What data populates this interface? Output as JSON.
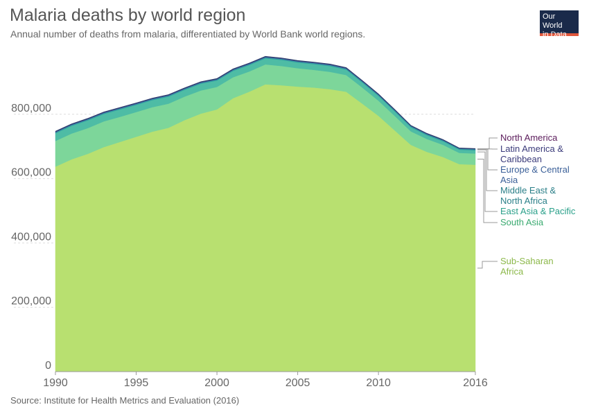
{
  "title": "Malaria deaths by world region",
  "subtitle": "Annual number of deaths from malaria, differentiated by World Bank world regions.",
  "source": "Source: Institute for Health Metrics and Evaluation (2016)",
  "logo": {
    "line1": "Our World",
    "line2": "in Data"
  },
  "chart_data": {
    "type": "area",
    "stacked": true,
    "title": "Malaria deaths by world region",
    "xlim": [
      1990,
      2016
    ],
    "ylim": [
      0,
      1000000
    ],
    "yticks": [
      0,
      200000,
      400000,
      600000,
      800000
    ],
    "ytick_labels": [
      "0",
      "200,000",
      "400,000",
      "600,000",
      "800,000"
    ],
    "xticks": [
      1990,
      1995,
      2000,
      2005,
      2010,
      2016
    ],
    "xtick_labels": [
      "1990",
      "1995",
      "2000",
      "2005",
      "2010",
      "2016"
    ],
    "grid": true,
    "legend_position": "right",
    "x": [
      1990,
      1991,
      1992,
      1993,
      1994,
      1995,
      1996,
      1997,
      1998,
      1999,
      2000,
      2001,
      2002,
      2003,
      2004,
      2005,
      2006,
      2007,
      2008,
      2009,
      2010,
      2011,
      2012,
      2013,
      2014,
      2015,
      2016
    ],
    "series": [
      {
        "name": "Sub-Saharan Africa",
        "color": "#b8e070",
        "values": [
          637000,
          660000,
          677000,
          698000,
          714000,
          730000,
          746000,
          758000,
          782000,
          802000,
          815000,
          850000,
          870000,
          893000,
          890000,
          886000,
          883000,
          878000,
          870000,
          833000,
          795000,
          750000,
          705000,
          683000,
          667000,
          645000,
          643000
        ]
      },
      {
        "name": "South Asia",
        "color": "#7dd69a",
        "values": [
          80000,
          80000,
          80000,
          80000,
          78000,
          77000,
          76000,
          75000,
          73000,
          72000,
          70000,
          65000,
          63000,
          62000,
          60000,
          57000,
          55000,
          54000,
          52000,
          50000,
          47000,
          45000,
          42000,
          40000,
          38000,
          35000,
          35000
        ]
      },
      {
        "name": "East Asia & Pacific",
        "color": "#4ebca5",
        "values": [
          24000,
          24000,
          24000,
          23000,
          23000,
          22000,
          22000,
          22000,
          21000,
          21000,
          20000,
          20000,
          20000,
          19000,
          19000,
          18000,
          18000,
          18000,
          17000,
          16000,
          15000,
          14000,
          13000,
          12000,
          11000,
          10000,
          10000
        ]
      },
      {
        "name": "Middle East & North Africa",
        "color": "#2f9aa0",
        "values": [
          3000,
          3000,
          3000,
          3000,
          3000,
          3000,
          3000,
          3000,
          3000,
          3000,
          3000,
          3000,
          3000,
          3000,
          3000,
          3000,
          3000,
          3000,
          3000,
          3000,
          3000,
          3000,
          3000,
          3000,
          3000,
          3000,
          3000
        ]
      },
      {
        "name": "Europe & Central Asia",
        "color": "#3a6fa8",
        "values": [
          500,
          500,
          500,
          500,
          500,
          500,
          500,
          500,
          500,
          500,
          500,
          500,
          500,
          500,
          500,
          500,
          500,
          500,
          500,
          500,
          500,
          500,
          500,
          500,
          500,
          500,
          500
        ]
      },
      {
        "name": "Latin America & Caribbean",
        "color": "#4a4a9a",
        "values": [
          2000,
          2000,
          2000,
          2000,
          2000,
          2000,
          2000,
          2000,
          2000,
          2000,
          2000,
          2000,
          2000,
          2000,
          2000,
          2000,
          2000,
          2000,
          2000,
          2000,
          1800,
          1800,
          1500,
          1500,
          1400,
          1200,
          1200
        ]
      },
      {
        "name": "North America",
        "color": "#6a1a6a",
        "values": [
          100,
          100,
          100,
          100,
          100,
          100,
          100,
          100,
          100,
          100,
          100,
          100,
          100,
          100,
          100,
          100,
          100,
          100,
          100,
          100,
          100,
          100,
          100,
          100,
          100,
          100,
          100
        ]
      }
    ],
    "legend_labels": [
      {
        "series": "North America",
        "lines": [
          "North America"
        ],
        "color": "#5a1a5a"
      },
      {
        "series": "Latin America & Caribbean",
        "lines": [
          "Latin America &",
          "Caribbean"
        ],
        "color": "#3a3a7a"
      },
      {
        "series": "Europe & Central Asia",
        "lines": [
          "Europe & Central",
          "Asia"
        ],
        "color": "#3a5f98"
      },
      {
        "series": "Middle East & North Africa",
        "lines": [
          "Middle East &",
          "North Africa"
        ],
        "color": "#2a7f88"
      },
      {
        "series": "East Asia & Pacific",
        "lines": [
          "East Asia & Pacific"
        ],
        "color": "#2aa08a"
      },
      {
        "series": "South Asia",
        "lines": [
          "South Asia"
        ],
        "color": "#3aaa70"
      },
      {
        "series": "Sub-Saharan Africa",
        "lines": [
          "Sub-Saharan",
          "Africa"
        ],
        "color": "#8cb84a"
      }
    ]
  }
}
